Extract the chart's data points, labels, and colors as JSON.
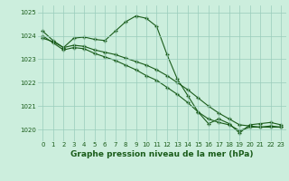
{
  "series": [
    {
      "x": [
        0,
        1,
        2,
        3,
        4,
        5,
        6,
        7,
        8,
        9,
        10,
        11,
        12,
        13,
        14,
        15,
        16,
        17,
        18,
        19,
        20,
        21,
        22,
        23
      ],
      "y": [
        1024.2,
        1023.8,
        1023.5,
        1023.9,
        1023.95,
        1023.85,
        1023.8,
        1024.2,
        1024.6,
        1024.85,
        1024.75,
        1024.4,
        1023.2,
        1022.15,
        1021.45,
        1020.75,
        1020.25,
        1020.45,
        1020.25,
        1019.85,
        1020.2,
        1020.25,
        1020.3,
        1020.2
      ]
    },
    {
      "x": [
        0,
        1,
        2,
        3,
        4,
        5,
        6,
        7,
        8,
        9,
        10,
        11,
        12,
        13,
        14,
        15,
        16,
        17,
        18,
        19,
        20,
        21,
        22,
        23
      ],
      "y": [
        1023.9,
        1023.75,
        1023.5,
        1023.6,
        1023.55,
        1023.4,
        1023.3,
        1023.2,
        1023.05,
        1022.9,
        1022.75,
        1022.55,
        1022.3,
        1022.0,
        1021.7,
        1021.35,
        1021.0,
        1020.7,
        1020.45,
        1020.2,
        1020.15,
        1020.1,
        1020.15,
        1020.1
      ]
    },
    {
      "x": [
        0,
        1,
        2,
        3,
        4,
        5,
        6,
        7,
        8,
        9,
        10,
        11,
        12,
        13,
        14,
        15,
        16,
        17,
        18,
        19,
        20,
        21,
        22,
        23
      ],
      "y": [
        1024.0,
        1023.7,
        1023.4,
        1023.5,
        1023.45,
        1023.25,
        1023.1,
        1022.95,
        1022.75,
        1022.55,
        1022.3,
        1022.1,
        1021.8,
        1021.5,
        1021.15,
        1020.75,
        1020.45,
        1020.3,
        1020.2,
        1019.95,
        1020.1,
        1020.1,
        1020.1,
        1020.1
      ]
    }
  ],
  "bg_color": "#cceedd",
  "grid_color": "#99ccbb",
  "line_color": "#1a5c1a",
  "marker": "+",
  "markersize": 3.5,
  "markeredgewidth": 1.0,
  "linewidth": 0.8,
  "xlim": [
    -0.5,
    23.5
  ],
  "ylim": [
    1019.5,
    1025.3
  ],
  "yticks": [
    1020,
    1021,
    1022,
    1023,
    1024,
    1025
  ],
  "xticks": [
    0,
    1,
    2,
    3,
    4,
    5,
    6,
    7,
    8,
    9,
    10,
    11,
    12,
    13,
    14,
    15,
    16,
    17,
    18,
    19,
    20,
    21,
    22,
    23
  ],
  "xlabel": "Graphe pression niveau de la mer (hPa)",
  "xlabel_fontsize": 6.5,
  "tick_fontsize": 5.0
}
